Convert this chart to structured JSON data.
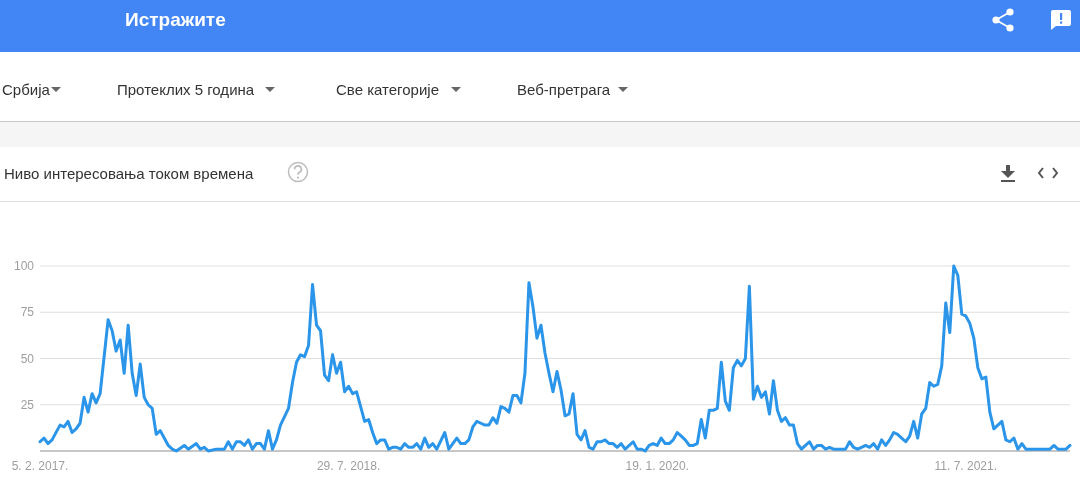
{
  "chart_data": {
    "type": "line",
    "title": "Ниво интересовања током времена",
    "annotations": [
      "Истражите",
      "Србија",
      "Протеклих 5 година",
      "Све категорије",
      "Веб-претрага"
    ],
    "color": "#2b95e9",
    "x": [
      "2017-02-05",
      "2017-02-12",
      "2017-02-19",
      "2017-02-26",
      "2017-03-12",
      "2017-03-19",
      "2017-03-26",
      "2017-04-02",
      "2017-04-09",
      "2017-04-16",
      "2017-04-23",
      "2017-04-30",
      "2017-05-07",
      "2017-05-14",
      "2017-05-21",
      "2017-06-04",
      "2017-06-11",
      "2017-06-18",
      "2017-06-25",
      "2017-07-02",
      "2017-07-09",
      "2017-07-16",
      "2017-07-23",
      "2017-07-30",
      "2017-08-06",
      "2017-08-13",
      "2017-08-20",
      "2017-08-27",
      "2017-09-03",
      "2017-09-10",
      "2017-09-17",
      "2017-09-24",
      "2017-10-01",
      "2017-10-15",
      "2017-10-22",
      "2017-11-05",
      "2017-11-12",
      "2017-11-19",
      "2017-11-26",
      "2017-12-10",
      "2017-12-24",
      "2017-12-31",
      "2018-01-07",
      "2018-01-14",
      "2018-01-21",
      "2018-01-28",
      "2018-02-04",
      "2018-02-11",
      "2018-02-18",
      "2018-02-25",
      "2018-03-04",
      "2018-03-11",
      "2018-03-18",
      "2018-03-25",
      "2018-04-01",
      "2018-04-15",
      "2018-04-22",
      "2018-04-29",
      "2018-05-06",
      "2018-05-13",
      "2018-05-20",
      "2018-05-27",
      "2018-06-03",
      "2018-06-10",
      "2018-06-17",
      "2018-06-24",
      "2018-07-01",
      "2018-07-08",
      "2018-07-15",
      "2018-07-22",
      "2018-07-29",
      "2018-08-05",
      "2018-08-12",
      "2018-08-19",
      "2018-08-26",
      "2018-09-02",
      "2018-09-09",
      "2018-09-16",
      "2018-09-23",
      "2018-09-30",
      "2018-10-07",
      "2018-10-14",
      "2018-10-21",
      "2018-10-28",
      "2018-11-04",
      "2018-11-11",
      "2018-11-18",
      "2018-11-25",
      "2018-12-02",
      "2018-12-09",
      "2018-12-16",
      "2018-12-23",
      "2018-12-30",
      "2019-01-13",
      "2019-01-20",
      "2019-01-27",
      "2019-02-03",
      "2019-02-10",
      "2019-02-17",
      "2019-02-24",
      "2019-03-03",
      "2019-03-10",
      "2019-03-17",
      "2019-03-24",
      "2019-03-31",
      "2019-04-07",
      "2019-04-14",
      "2019-04-21",
      "2019-04-28",
      "2019-05-05",
      "2019-05-12",
      "2019-05-19",
      "2019-05-26",
      "2019-06-02",
      "2019-06-09",
      "2019-06-16",
      "2019-06-23",
      "2019-06-30",
      "2019-07-07",
      "2019-07-14",
      "2019-07-21",
      "2019-07-28",
      "2019-08-04",
      "2019-08-11",
      "2019-08-18",
      "2019-08-25",
      "2019-09-01",
      "2019-09-08",
      "2019-09-15",
      "2019-09-22",
      "2019-09-29",
      "2019-10-06",
      "2019-10-13",
      "2019-10-20",
      "2019-10-27",
      "2019-11-03",
      "2019-11-10",
      "2019-11-17",
      "2019-11-24",
      "2019-12-08",
      "2019-12-15",
      "2019-12-22",
      "2019-12-29",
      "2020-01-05",
      "2020-01-12",
      "2020-01-19",
      "2020-01-26",
      "2020-02-02",
      "2020-02-09",
      "2020-02-16",
      "2020-02-23",
      "2020-03-01",
      "2020-03-08",
      "2020-03-15",
      "2020-03-22",
      "2020-03-29",
      "2020-04-05",
      "2020-04-12",
      "2020-04-19",
      "2020-04-26",
      "2020-05-03",
      "2020-05-10",
      "2020-05-17",
      "2020-05-24",
      "2020-05-31",
      "2020-06-07",
      "2020-06-14",
      "2020-06-21",
      "2020-06-28",
      "2020-07-05",
      "2020-07-12",
      "2020-07-19",
      "2020-07-26",
      "2020-08-02",
      "2020-08-09",
      "2020-08-16",
      "2020-08-23",
      "2020-08-30",
      "2020-09-06",
      "2020-09-13",
      "2020-09-20",
      "2020-09-27",
      "2020-10-04",
      "2020-10-11",
      "2020-10-18",
      "2020-10-25",
      "2020-11-01",
      "2020-11-08",
      "2020-11-15",
      "2020-11-22",
      "2020-12-06",
      "2020-12-13",
      "2020-12-20",
      "2020-12-27",
      "2021-01-03",
      "2021-01-10",
      "2021-01-17",
      "2021-01-24",
      "2021-01-31",
      "2021-02-07",
      "2021-02-14",
      "2021-02-21",
      "2021-02-28",
      "2021-03-07",
      "2021-03-14",
      "2021-03-21",
      "2021-03-28",
      "2021-04-04",
      "2021-04-11",
      "2021-04-18",
      "2021-04-25",
      "2021-05-02",
      "2021-05-09",
      "2021-05-16",
      "2021-05-23",
      "2021-05-30",
      "2021-06-06",
      "2021-06-13",
      "2021-06-20",
      "2021-06-27",
      "2021-07-04",
      "2021-07-11",
      "2021-07-18",
      "2021-07-25",
      "2021-08-01",
      "2021-08-08",
      "2021-08-15",
      "2021-08-22",
      "2021-08-29",
      "2021-09-05",
      "2021-09-12",
      "2021-09-19",
      "2021-09-26",
      "2021-10-03",
      "2021-10-10",
      "2021-10-17",
      "2021-10-24",
      "2021-10-31",
      "2021-12-05",
      "2021-12-12",
      "2021-12-19",
      "2022-01-02",
      "2022-01-09"
    ],
    "values": [
      5,
      7,
      4,
      6,
      14,
      13,
      16,
      10,
      12,
      15,
      29,
      21,
      31,
      26,
      31,
      71,
      65,
      54,
      60,
      42,
      68,
      42,
      30,
      47,
      29,
      25,
      23,
      9,
      11,
      7,
      3,
      1,
      0,
      3,
      1,
      4,
      1,
      2,
      0,
      1,
      1,
      5,
      1,
      5,
      5,
      3,
      6,
      1,
      4,
      4,
      1,
      11,
      1,
      6,
      14,
      23,
      37,
      48,
      52,
      51,
      57,
      90,
      68,
      65,
      41,
      38,
      52,
      42,
      48,
      32,
      35,
      31,
      32,
      24,
      16,
      17,
      10,
      4,
      6,
      6,
      1,
      2,
      2,
      1,
      4,
      2,
      2,
      4,
      1,
      7,
      2,
      4,
      1,
      10,
      1,
      4,
      7,
      4,
      4,
      6,
      13,
      16,
      15,
      14,
      14,
      18,
      15,
      24,
      23,
      21,
      30,
      30,
      26,
      42,
      91,
      78,
      61,
      68,
      53,
      42,
      32,
      43,
      33,
      19,
      20,
      31,
      9,
      6,
      11,
      2,
      1,
      5,
      5,
      6,
      4,
      4,
      2,
      4,
      1,
      5,
      1,
      1,
      0,
      3,
      4,
      3,
      7,
      4,
      4,
      6,
      10,
      8,
      6,
      3,
      3,
      4,
      17,
      7,
      22,
      22,
      23,
      48,
      27,
      22,
      45,
      49,
      46,
      50,
      89,
      28,
      35,
      29,
      32,
      20,
      38,
      22,
      16,
      18,
      14,
      14,
      4,
      1,
      3,
      5,
      1,
      3,
      3,
      1,
      2,
      1,
      1,
      1,
      5,
      2,
      1,
      2,
      3,
      2,
      4,
      1,
      6,
      3,
      6,
      10,
      9,
      7,
      5,
      8,
      16,
      7,
      20,
      23,
      37,
      35,
      36,
      46,
      80,
      64,
      100,
      95,
      74,
      73,
      69,
      61,
      45,
      39,
      40,
      21,
      12,
      14,
      16,
      6,
      5,
      7,
      1,
      4,
      1,
      1,
      1,
      3,
      1,
      1,
      3
    ],
    "xlim": [
      "2017-02-05",
      "2022-01-09"
    ],
    "xticks": [
      {
        "value": "2017-02-05",
        "label": "5. 2. 2017."
      },
      {
        "value": "2018-07-29",
        "label": "29. 7. 2018."
      },
      {
        "value": "2020-01-19",
        "label": "19. 1. 2020."
      },
      {
        "value": "2021-07-11",
        "label": "11. 7. 2021."
      }
    ],
    "ylim": [
      0,
      100
    ],
    "yticks": [
      {
        "value": 0,
        "label": null
      },
      25,
      50,
      75,
      100
    ],
    "grid": "y"
  }
}
